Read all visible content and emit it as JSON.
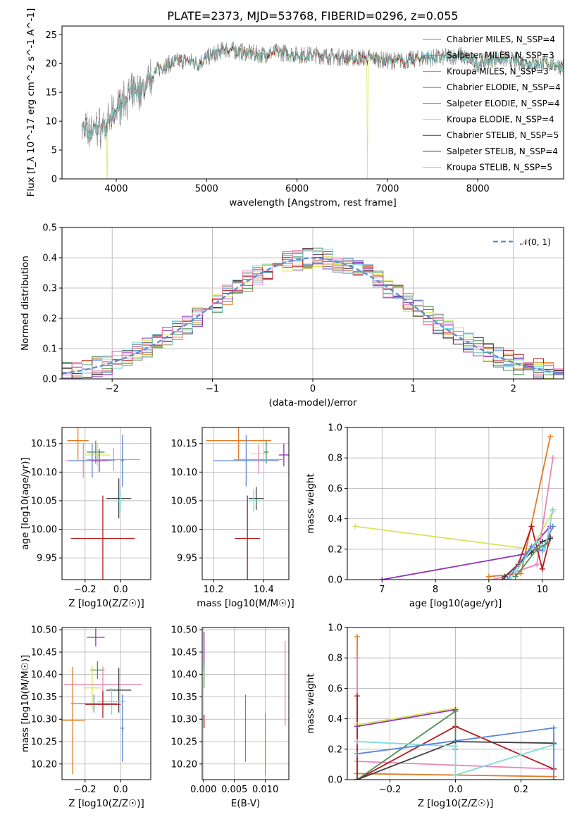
{
  "title": "PLATE=2373, MJD=53768, FIBERID=0296, z=0.055",
  "colors": {
    "Chabrier MILES": "#5b86d6",
    "Salpeter MILES": "#7f7f7f",
    "Kroupa MILES": "#e07c27",
    "Chabrier ELODIE": "#4f8f55",
    "Salpeter ELODIE": "#8f33b5",
    "Kroupa ELODIE": "#d9e45a",
    "Chabrier STELIB": "#404040",
    "Salpeter STELIB": "#b31b1b",
    "Kroupa STELIB": "#7fdada",
    "gauss": "#5b8fd6",
    "pink": "#e887b8"
  },
  "chart_data": [
    {
      "type": "line",
      "panel": "spectrum",
      "xlabel": "wavelength [Angstrom, rest frame]",
      "ylabel": "Flux [f_λ 10^-17 erg cm^-2 s^-1 A^-1]",
      "xlim": [
        3400,
        8950
      ],
      "ylim": [
        0,
        26.5
      ],
      "xticks": [
        "4000",
        "5000",
        "6000",
        "7000",
        "8000"
      ],
      "yticks": [
        "0",
        "5",
        "10",
        "15",
        "20",
        "25"
      ],
      "legend_loc": "right",
      "legend": [
        {
          "label": "Chabrier MILES, N_SSP=4",
          "color_key": "Chabrier MILES"
        },
        {
          "label": "Salpeter MILES, N_SSP=3",
          "color_key": "Salpeter MILES"
        },
        {
          "label": "Kroupa MILES, N_SSP=3",
          "color_key": "Kroupa MILES"
        },
        {
          "label": "Chabrier ELODIE, N_SSP=4",
          "color_key": "Chabrier ELODIE"
        },
        {
          "label": "Salpeter ELODIE, N_SSP=4",
          "color_key": "Salpeter ELODIE"
        },
        {
          "label": "Kroupa ELODIE, N_SSP=4",
          "color_key": "Kroupa ELODIE"
        },
        {
          "label": "Chabrier STELIB, N_SSP=5",
          "color_key": "Chabrier STELIB"
        },
        {
          "label": "Salpeter STELIB, N_SSP=4",
          "color_key": "Salpeter STELIB"
        },
        {
          "label": "Kroupa STELIB, N_SSP=5",
          "color_key": "Kroupa STELIB"
        }
      ],
      "continuum": [
        [
          3620,
          9
        ],
        [
          3700,
          8
        ],
        [
          3800,
          9
        ],
        [
          3900,
          9
        ],
        [
          4000,
          12
        ],
        [
          4100,
          14
        ],
        [
          4200,
          15
        ],
        [
          4300,
          15.5
        ],
        [
          4400,
          18
        ],
        [
          4500,
          19.5
        ],
        [
          4600,
          20
        ],
        [
          4700,
          20.5
        ],
        [
          4800,
          20.5
        ],
        [
          4900,
          20
        ],
        [
          5000,
          21
        ],
        [
          5200,
          22.5
        ],
        [
          5400,
          22
        ],
        [
          5600,
          21.5
        ],
        [
          5800,
          22
        ],
        [
          6000,
          21.5
        ],
        [
          6200,
          21.5
        ],
        [
          6400,
          21.2
        ],
        [
          6600,
          21
        ],
        [
          6800,
          21
        ],
        [
          7000,
          20.5
        ],
        [
          7200,
          20.5
        ],
        [
          7400,
          21
        ],
        [
          7600,
          21
        ],
        [
          7800,
          21.5
        ],
        [
          8000,
          20
        ],
        [
          8200,
          21
        ],
        [
          8400,
          20.5
        ],
        [
          8600,
          20
        ],
        [
          8800,
          20
        ],
        [
          8950,
          19.5
        ]
      ]
    },
    {
      "type": "line",
      "panel": "residuals",
      "xlabel": "(data-model)/error",
      "ylabel": "Normed distribution",
      "xlim": [
        -2.5,
        2.5
      ],
      "ylim": [
        0,
        0.5
      ],
      "xticks": [
        "−2",
        "−1",
        "0",
        "1",
        "2"
      ],
      "yticks": [
        "0.0",
        "0.1",
        "0.2",
        "0.3",
        "0.4",
        "0.5"
      ],
      "grid": true,
      "legend_loc": "upper right",
      "legend": [
        {
          "label": "𝒩(0, 1)",
          "color_key": "gauss"
        }
      ],
      "gaussian": {
        "mean": 0,
        "sigma": 1
      }
    },
    {
      "type": "scatter",
      "panel": "age_vs_Z",
      "xlabel": "Z [log10(Z/Z☉)]",
      "ylabel": "age  [log10(age/yr)]",
      "xlim": [
        -0.33,
        0.17
      ],
      "ylim": [
        9.912,
        10.178
      ],
      "xticks": [
        "−0.2",
        "0.0"
      ],
      "yticks": [
        "9.95",
        "10.00",
        "10.05",
        "10.10",
        "10.15"
      ],
      "grid": true,
      "points": [
        {
          "color_key": "Kroupa MILES",
          "x": -0.24,
          "xerr": 0.06,
          "y": 10.155,
          "yerr": 0.035
        },
        {
          "color_key": "Chabrier ELODIE",
          "x": -0.14,
          "xerr": 0.05,
          "y": 10.135,
          "yerr": 0.02
        },
        {
          "color_key": "Kroupa ELODIE",
          "x": -0.13,
          "xerr": 0.07,
          "y": 10.13,
          "yerr": 0.02
        },
        {
          "color_key": "pink",
          "x": -0.21,
          "xerr": 0.1,
          "y": 10.12,
          "yerr": 0.03
        },
        {
          "color_key": "Chabrier MILES",
          "x": -0.16,
          "xerr": 0.13,
          "y": 10.12,
          "yerr": 0.03
        },
        {
          "color_key": "Salpeter ELODIE",
          "x": -0.12,
          "xerr": 0.05,
          "y": 10.12,
          "yerr": 0.02
        },
        {
          "color_key": "pink",
          "x": -0.04,
          "xerr": 0.15,
          "y": 10.122,
          "yerr": 0.02
        },
        {
          "color_key": "Chabrier MILES",
          "x": 0.01,
          "xerr": 0.01,
          "y": 10.12,
          "yerr": 0.045
        },
        {
          "color_key": "Chabrier STELIB",
          "x": -0.01,
          "xerr": 0.07,
          "y": 10.054,
          "yerr": 0.035
        },
        {
          "color_key": "Kroupa STELIB",
          "x": 0.0,
          "xerr": 0.02,
          "y": 10.05,
          "yerr": 0.02
        },
        {
          "color_key": "Salpeter STELIB",
          "x": -0.1,
          "xerr": 0.18,
          "y": 9.984,
          "yerr": 0.075
        }
      ]
    },
    {
      "type": "scatter",
      "panel": "age_vs_mass",
      "xlabel": "mass [log10(M/M☉)]",
      "ylabel": "",
      "xlim": [
        10.155,
        10.5
      ],
      "ylim": [
        9.912,
        10.178
      ],
      "xticks": [
        "10.2",
        "10.4"
      ],
      "yticks": [
        "9.95",
        "10.00",
        "10.05",
        "10.10",
        "10.15"
      ],
      "grid": true,
      "points": [
        {
          "color_key": "Kroupa MILES",
          "x": 10.3,
          "xerr": 0.13,
          "y": 10.155,
          "yerr": 0.035
        },
        {
          "color_key": "Chabrier ELODIE",
          "x": 10.41,
          "xerr": 0.01,
          "y": 10.135,
          "yerr": 0.02
        },
        {
          "color_key": "Kroupa ELODIE",
          "x": 10.38,
          "xerr": 0.03,
          "y": 10.132,
          "yerr": 0.02
        },
        {
          "color_key": "Salpeter ELODIE",
          "x": 10.48,
          "xerr": 0.02,
          "y": 10.13,
          "yerr": 0.02
        },
        {
          "color_key": "Chabrier MILES",
          "x": 10.33,
          "xerr": 0.13,
          "y": 10.12,
          "yerr": 0.045
        },
        {
          "color_key": "pink",
          "x": 10.38,
          "xerr": 0.1,
          "y": 10.122,
          "yerr": 0.025
        },
        {
          "color_key": "Chabrier STELIB",
          "x": 10.37,
          "xerr": 0.03,
          "y": 10.054,
          "yerr": 0.02
        },
        {
          "color_key": "Kroupa STELIB",
          "x": 10.36,
          "xerr": 0.02,
          "y": 10.05,
          "yerr": 0.02
        },
        {
          "color_key": "Salpeter STELIB",
          "x": 10.335,
          "xerr": 0.05,
          "y": 9.984,
          "yerr": 0.075
        }
      ]
    },
    {
      "type": "line",
      "panel": "massweight_vs_age",
      "xlabel": "age  [log10(age/yr)]",
      "ylabel": "mass weight",
      "xlim": [
        6.35,
        10.4
      ],
      "ylim": [
        0,
        1
      ],
      "xticks": [
        "7",
        "8",
        "9",
        "10"
      ],
      "yticks": [
        "0.0",
        "0.2",
        "0.4",
        "0.6",
        "0.8",
        "1.0"
      ],
      "grid": true,
      "series": [
        {
          "color_key": "Kroupa ELODIE",
          "x": [
            6.5,
            9.8,
            10.2
          ],
          "y": [
            0.35,
            0.2,
            0.45
          ]
        },
        {
          "color_key": "Salpeter ELODIE",
          "x": [
            7.0,
            9.7,
            10.15
          ],
          "y": [
            0.0,
            0.17,
            0.35
          ]
        },
        {
          "color_key": "Kroupa MILES",
          "x": [
            9.0,
            9.6,
            10.15
          ],
          "y": [
            0.02,
            0.04,
            0.94
          ]
        },
        {
          "color_key": "pink",
          "x": [
            9.1,
            9.9,
            10.2
          ],
          "y": [
            0.0,
            0.1,
            0.8
          ]
        },
        {
          "color_key": "Salpeter STELIB",
          "x": [
            9.25,
            9.55,
            9.8,
            10.0,
            10.15
          ],
          "y": [
            0.0,
            0.1,
            0.35,
            0.07,
            0.28
          ]
        },
        {
          "color_key": "Chabrier STELIB",
          "x": [
            9.3,
            9.8,
            10.0,
            10.15
          ],
          "y": [
            0.02,
            0.18,
            0.25,
            0.27
          ]
        },
        {
          "color_key": "Chabrier MILES",
          "x": [
            9.35,
            9.8,
            10.0,
            10.2
          ],
          "y": [
            0.0,
            0.22,
            0.19,
            0.35
          ]
        },
        {
          "color_key": "Kroupa STELIB",
          "x": [
            9.4,
            9.9,
            10.05,
            10.2
          ],
          "y": [
            0.0,
            0.25,
            0.2,
            0.46
          ]
        },
        {
          "color_key": "Chabrier ELODIE",
          "x": [
            9.5,
            9.9,
            10.1
          ],
          "y": [
            0.02,
            0.2,
            0.24
          ]
        }
      ]
    },
    {
      "type": "scatter",
      "panel": "mass_vs_Z",
      "xlabel": "Z [log10(Z/Z☉)]",
      "ylabel": "mass [log10(M/M☉)]",
      "xlim": [
        -0.33,
        0.17
      ],
      "ylim": [
        10.165,
        10.505
      ],
      "xticks": [
        "−0.2",
        "0.0"
      ],
      "yticks": [
        "10.20",
        "10.25",
        "10.30",
        "10.35",
        "10.40",
        "10.45",
        "10.50"
      ],
      "grid": true,
      "points": [
        {
          "color_key": "Salpeter ELODIE",
          "x": -0.14,
          "xerr": 0.05,
          "y": 10.483,
          "yerr": 0.02
        },
        {
          "color_key": "Chabrier ELODIE",
          "x": -0.13,
          "xerr": 0.04,
          "y": 10.41,
          "yerr": 0.02
        },
        {
          "color_key": "pink",
          "x": -0.1,
          "xerr": 0.22,
          "y": 10.378,
          "yerr": 0.04
        },
        {
          "color_key": "Kroupa ELODIE",
          "x": -0.16,
          "xerr": 0.05,
          "y": 10.37,
          "yerr": 0.05
        },
        {
          "color_key": "Chabrier STELIB",
          "x": -0.01,
          "xerr": 0.07,
          "y": 10.365,
          "yerr": 0.05
        },
        {
          "color_key": "Kroupa STELIB",
          "x": -0.05,
          "xerr": 0.08,
          "y": 10.34,
          "yerr": 0.03
        },
        {
          "color_key": "Chabrier MILES",
          "x": -0.15,
          "xerr": 0.13,
          "y": 10.335,
          "yerr": 0.02
        },
        {
          "color_key": "Chabrier MILES",
          "x": 0.01,
          "xerr": 0.01,
          "y": 10.28,
          "yerr": 0.075
        },
        {
          "color_key": "Salpeter STELIB",
          "x": -0.1,
          "xerr": 0.1,
          "y": 10.333,
          "yerr": 0.03
        },
        {
          "color_key": "Kroupa MILES",
          "x": -0.27,
          "xerr": 0.07,
          "y": 10.297,
          "yerr": 0.12
        }
      ]
    },
    {
      "type": "scatter",
      "panel": "mass_vs_EBV",
      "xlabel": "E(B-V)",
      "ylabel": "",
      "xlim": [
        -0.0002,
        0.0138
      ],
      "ylim": [
        10.165,
        10.505
      ],
      "xticks": [
        "0.000",
        "0.005",
        "0.010"
      ],
      "yticks": [
        "10.20",
        "10.25",
        "10.30",
        "10.35",
        "10.40",
        "10.45",
        "10.50"
      ],
      "grid": true,
      "points": [
        {
          "color_key": "Salpeter ELODIE",
          "x": 0.0001,
          "xerr": 0,
          "y": 10.46,
          "yerr": 0.035
        },
        {
          "color_key": "Chabrier ELODIE",
          "x": 0.0001,
          "xerr": 0,
          "y": 10.4,
          "yerr": 0.03
        },
        {
          "color_key": "Kroupa ELODIE",
          "x": 0.0,
          "xerr": 0,
          "y": 10.36,
          "yerr": 0.05
        },
        {
          "color_key": "Salpeter STELIB",
          "x": 0.0001,
          "xerr": 0,
          "y": 10.295,
          "yerr": 0.015
        },
        {
          "color_key": "Chabrier MILES",
          "x": 0.0068,
          "xerr": 0,
          "y": 10.28,
          "yerr": 0.075
        },
        {
          "color_key": "Kroupa MILES",
          "x": 0.01,
          "xerr": 0,
          "y": 10.245,
          "yerr": 0.07
        },
        {
          "color_key": "pink",
          "x": 0.0132,
          "xerr": 0,
          "y": 10.38,
          "yerr": 0.095
        }
      ]
    },
    {
      "type": "line",
      "panel": "massweight_vs_Z",
      "xlabel": "Z [log10(Z/Z☉)]",
      "ylabel": "mass weight",
      "xlim": [
        -0.33,
        0.33
      ],
      "ylim": [
        0,
        1
      ],
      "xticks": [
        "−0.2",
        "0.0",
        "0.2"
      ],
      "yticks": [
        "0.0",
        "0.2",
        "0.4",
        "0.6",
        "0.8",
        "1.0"
      ],
      "grid": true,
      "series": [
        {
          "color_key": "Kroupa MILES",
          "x": [
            -0.3,
            -0.3,
            -0.3,
            0.0,
            0.3
          ],
          "y": [
            0.94,
            0.8,
            0.04,
            0.03,
            0.02
          ]
        },
        {
          "color_key": "pink",
          "x": [
            -0.3,
            -0.3,
            0.3
          ],
          "y": [
            0.8,
            0.12,
            0.07
          ]
        },
        {
          "color_key": "Salpeter STELIB",
          "x": [
            -0.3,
            -0.3,
            0.0,
            0.3
          ],
          "y": [
            0.55,
            0.0,
            0.35,
            0.07
          ]
        },
        {
          "color_key": "Kroupa ELODIE",
          "x": [
            -0.3,
            0.0,
            0.0
          ],
          "y": [
            0.36,
            0.47,
            0.45
          ]
        },
        {
          "color_key": "Salpeter ELODIE",
          "x": [
            -0.3,
            0.0
          ],
          "y": [
            0.35,
            0.46
          ]
        },
        {
          "color_key": "Chabrier ELODIE",
          "x": [
            -0.3,
            0.0,
            0.0
          ],
          "y": [
            0.0,
            0.45,
            0.2
          ]
        },
        {
          "color_key": "Chabrier STELIB",
          "x": [
            -0.3,
            0.0,
            0.3
          ],
          "y": [
            0.0,
            0.25,
            0.24
          ]
        },
        {
          "color_key": "Kroupa STELIB",
          "x": [
            -0.3,
            0.0,
            0.0,
            0.3
          ],
          "y": [
            0.25,
            0.22,
            0.03,
            0.23
          ]
        },
        {
          "color_key": "Chabrier MILES",
          "x": [
            -0.3,
            0.3,
            0.3
          ],
          "y": [
            0.17,
            0.34,
            0.0
          ]
        }
      ]
    }
  ]
}
